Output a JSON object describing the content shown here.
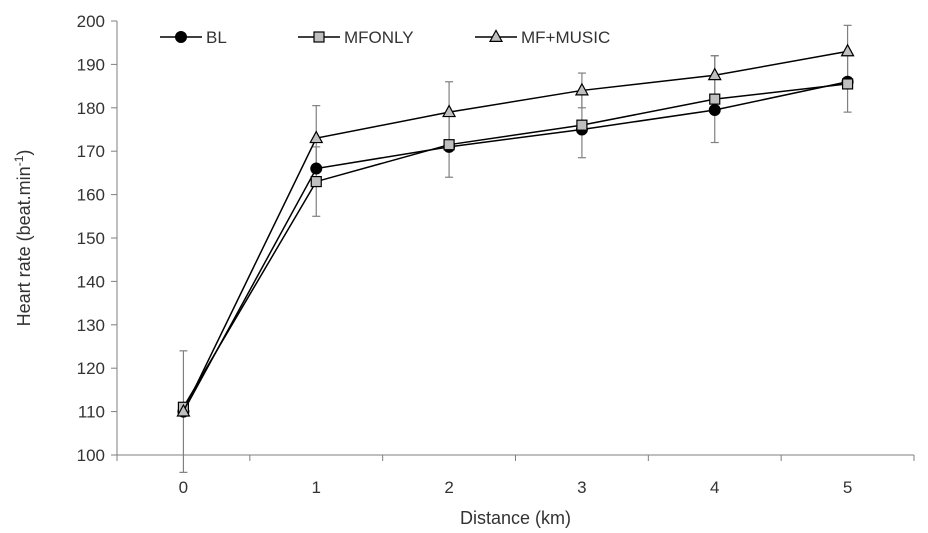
{
  "chart_data": {
    "type": "line",
    "xlabel": "Distance (km)",
    "ylabel_main": "Heart rate (beat.min",
    "ylabel_sup": "-1",
    "ylabel_close": ")",
    "x": [
      0,
      1,
      2,
      3,
      4,
      5
    ],
    "x_tick_labels": [
      "0",
      "1",
      "2",
      "3",
      "4",
      "5"
    ],
    "ylim": [
      100,
      200
    ],
    "y_ticks": [
      100,
      110,
      120,
      130,
      140,
      150,
      160,
      170,
      180,
      190,
      200
    ],
    "y_tick_labels": [
      "100",
      "110",
      "120",
      "130",
      "140",
      "150",
      "160",
      "170",
      "180",
      "190",
      "200"
    ],
    "grid": false,
    "legend_position": "top",
    "series": [
      {
        "name": "BL",
        "marker": "circle",
        "marker_color": "#000000",
        "values": [
          110,
          166,
          171,
          175,
          179.5,
          186
        ],
        "error_bars": [
          null,
          null,
          null,
          null,
          null,
          null
        ]
      },
      {
        "name": "MFONLY",
        "marker": "square",
        "marker_color": "#bfbfbf",
        "values": [
          111,
          163,
          171.5,
          176,
          182,
          185.5
        ],
        "error_bars": [
          null,
          8,
          7.5,
          7.5,
          10,
          6.5
        ]
      },
      {
        "name": "MF+MUSIC",
        "marker": "triangle",
        "marker_color": "#bfbfbf",
        "values": [
          110,
          173,
          179,
          184,
          187.5,
          193
        ],
        "error_bars": [
          14,
          7.5,
          7,
          4,
          4.5,
          6
        ]
      }
    ]
  }
}
